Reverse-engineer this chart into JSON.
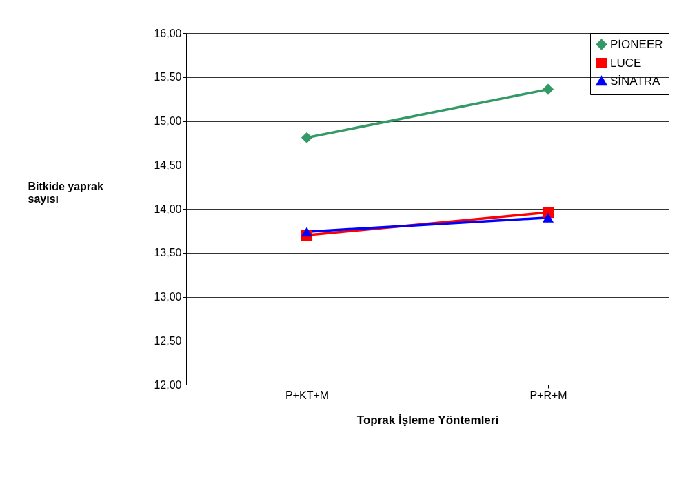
{
  "chart_data": {
    "type": "line",
    "xlabel": "Toprak İşleme Yöntemleri",
    "ylabel": "Bitkide yaprak sayısı",
    "categories": [
      "P+KT+M",
      "P+R+M"
    ],
    "series": [
      {
        "name": "PİONEER",
        "color": "#339966",
        "marker": "diamond",
        "values": [
          14.81,
          15.36
        ]
      },
      {
        "name": "LUCE",
        "color": "#ff0000",
        "marker": "square",
        "values": [
          13.7,
          13.96
        ]
      },
      {
        "name": "SİNATRA",
        "color": "#0000ff",
        "marker": "triangle",
        "values": [
          13.74,
          13.9
        ]
      }
    ],
    "ylim": [
      12,
      16
    ],
    "yticks": [
      {
        "value": 12,
        "label": "12,00"
      },
      {
        "value": 12.5,
        "label": "12,50"
      },
      {
        "value": 13,
        "label": "13,00"
      },
      {
        "value": 13.5,
        "label": "13,50"
      },
      {
        "value": 14,
        "label": "14,00"
      },
      {
        "value": 14.5,
        "label": "14,50"
      },
      {
        "value": 15,
        "label": "15,00"
      },
      {
        "value": 15.5,
        "label": "15,50"
      },
      {
        "value": 16,
        "label": "16,00"
      }
    ],
    "grid": "y",
    "legend": "top right",
    "line_style": "solid"
  }
}
